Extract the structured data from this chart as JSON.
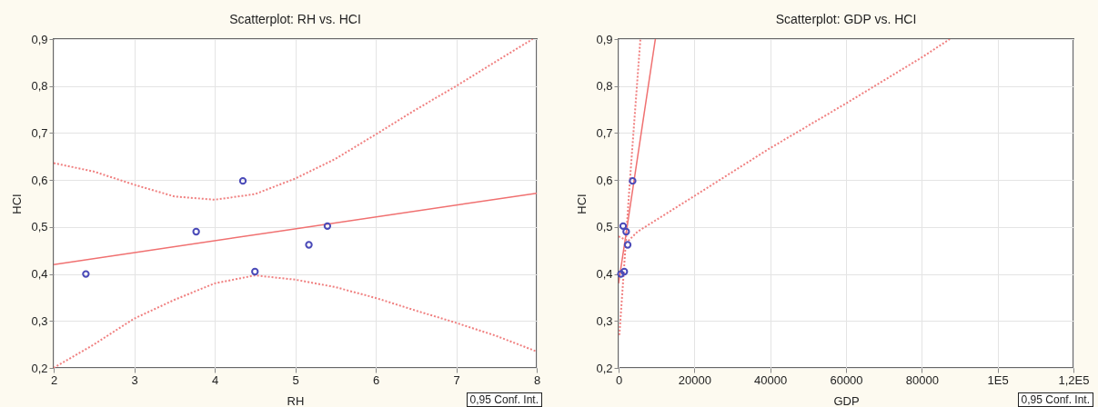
{
  "chart_data": [
    {
      "type": "scatter",
      "title": "Scatterplot: RH vs. HCI",
      "xlabel": "RH",
      "ylabel": "HCI",
      "xlim": [
        2,
        8
      ],
      "xticks": [
        2,
        3,
        4,
        5,
        6,
        7,
        8
      ],
      "ylim": [
        0.2,
        0.9
      ],
      "yticks": [
        {
          "value": 0.2,
          "label": "0,2"
        },
        {
          "value": 0.3,
          "label": "0,3"
        },
        {
          "value": 0.4,
          "label": "0,4"
        },
        {
          "value": 0.5,
          "label": "0,5"
        },
        {
          "value": 0.6,
          "label": "0,6"
        },
        {
          "value": 0.7,
          "label": "0,7"
        },
        {
          "value": 0.8,
          "label": "0,8"
        },
        {
          "value": 0.9,
          "label": "0,9"
        }
      ],
      "grid": true,
      "annotations": [
        "0,95 Conf. Int."
      ],
      "series": [
        {
          "type": "scatter",
          "marker": "circle",
          "color": "#4a4ab8",
          "x": [
            2.4,
            3.77,
            4.35,
            4.5,
            5.17,
            5.4
          ],
          "values": [
            0.4,
            0.49,
            0.598,
            0.405,
            0.462,
            0.502
          ]
        },
        {
          "type": "line",
          "line_style": "solid",
          "color": "#f07070",
          "x": [
            2,
            8
          ],
          "values": [
            0.42,
            0.572
          ]
        },
        {
          "type": "line",
          "line_style": "dotted",
          "color": "#f08080",
          "x": [
            2,
            2.5,
            3,
            3.5,
            4,
            4.5,
            5,
            5.5,
            6,
            6.5,
            7,
            7.5,
            7.95
          ],
          "values": [
            0.636,
            0.618,
            0.59,
            0.565,
            0.558,
            0.57,
            0.603,
            0.645,
            0.697,
            0.75,
            0.8,
            0.853,
            0.9
          ]
        },
        {
          "type": "line",
          "line_style": "dotted",
          "color": "#f08080",
          "x": [
            2,
            2.5,
            3,
            3.5,
            4,
            4.5,
            5,
            5.5,
            6,
            6.5,
            7,
            7.5,
            8
          ],
          "values": [
            0.2,
            0.25,
            0.305,
            0.345,
            0.38,
            0.397,
            0.388,
            0.372,
            0.349,
            0.322,
            0.296,
            0.268,
            0.235
          ]
        }
      ]
    },
    {
      "type": "scatter",
      "title": "Scatterplot: GDP vs. HCI",
      "xlabel": "GDP",
      "ylabel": "HCI",
      "xlim": [
        0,
        120000
      ],
      "xticks": [
        0,
        20000,
        40000,
        60000,
        80000,
        {
          "value": 100000,
          "label": "1E5"
        },
        {
          "value": 120000,
          "label": "1,2E5"
        }
      ],
      "ylim": [
        0.2,
        0.9
      ],
      "yticks": [
        {
          "value": 0.2,
          "label": "0,2"
        },
        {
          "value": 0.3,
          "label": "0,3"
        },
        {
          "value": 0.4,
          "label": "0,4"
        },
        {
          "value": 0.5,
          "label": "0,5"
        },
        {
          "value": 0.6,
          "label": "0,6"
        },
        {
          "value": 0.7,
          "label": "0,7"
        },
        {
          "value": 0.8,
          "label": "0,8"
        },
        {
          "value": 0.9,
          "label": "0,9"
        }
      ],
      "grid": true,
      "annotations": [
        "0,95 Conf. Int."
      ],
      "series": [
        {
          "type": "scatter",
          "marker": "circle",
          "color": "#4a4ab8",
          "x": [
            600,
            1500,
            1200,
            2000,
            2400,
            3700
          ],
          "values": [
            0.4,
            0.405,
            0.502,
            0.49,
            0.462,
            0.598
          ]
        },
        {
          "type": "line",
          "line_style": "solid",
          "color": "#f07070",
          "x": [
            0,
            9700
          ],
          "values": [
            0.38,
            0.9
          ]
        },
        {
          "type": "line",
          "line_style": "dotted",
          "color": "#f08080",
          "x": [
            200,
            1500,
            3000,
            5750
          ],
          "values": [
            0.27,
            0.42,
            0.6,
            0.9
          ]
        },
        {
          "type": "line",
          "line_style": "dotted",
          "color": "#f08080",
          "x": [
            0,
            2500,
            5000,
            20000,
            40000,
            60000,
            80000,
            87400
          ],
          "values": [
            0.48,
            0.47,
            0.49,
            0.566,
            0.668,
            0.763,
            0.861,
            0.9
          ]
        }
      ]
    }
  ]
}
